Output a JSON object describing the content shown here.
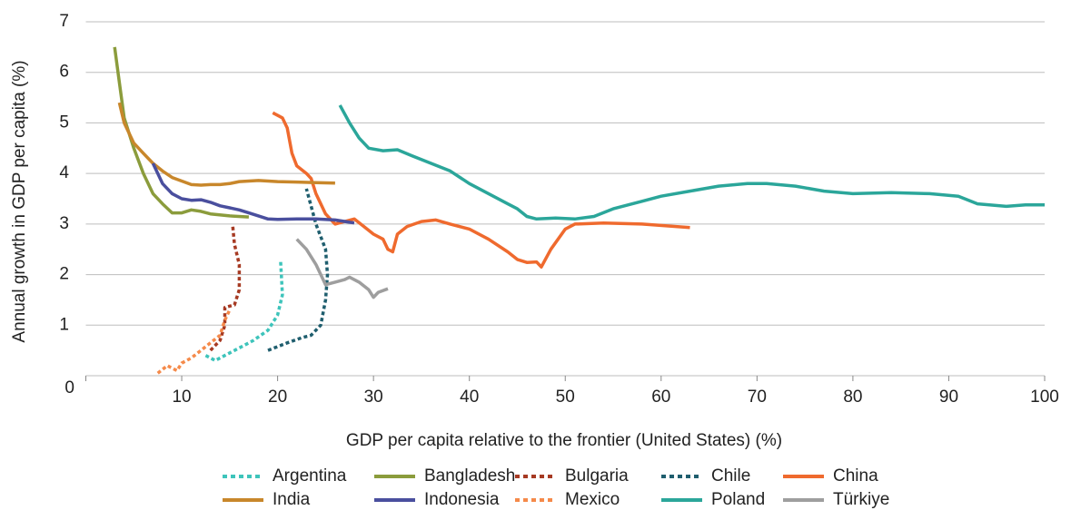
{
  "chart_data": {
    "type": "line",
    "xlabel": "GDP per capita relative to the frontier (United States) (%)",
    "ylabel": "Annual growth in GDP per capita (%)",
    "xlim": [
      0,
      100
    ],
    "ylim": [
      0,
      7
    ],
    "xticks": [
      10,
      20,
      30,
      40,
      50,
      60,
      70,
      80,
      90,
      100
    ],
    "yticks": [
      0,
      1,
      2,
      3,
      4,
      5,
      6,
      7
    ],
    "grid": true,
    "legend": "bottom",
    "series": [
      {
        "name": "Argentina",
        "color": "#3ec4bb",
        "style": "dotted",
        "x": [
          12.5,
          13.5,
          14.5,
          16,
          17.5,
          19,
          20,
          20.5,
          20.3
        ],
        "values": [
          0.4,
          0.3,
          0.4,
          0.55,
          0.7,
          0.9,
          1.2,
          1.6,
          2.3
        ]
      },
      {
        "name": "Bangladesh",
        "color": "#8b9c3c",
        "style": "solid",
        "x": [
          3.0,
          3.5,
          4,
          5,
          6,
          7,
          8,
          9,
          10,
          11,
          12,
          13,
          15,
          17
        ],
        "values": [
          6.5,
          5.8,
          5.1,
          4.5,
          4.0,
          3.6,
          3.4,
          3.22,
          3.22,
          3.28,
          3.25,
          3.2,
          3.16,
          3.14
        ]
      },
      {
        "name": "Bulgaria",
        "color": "#a63a23",
        "style": "dotted",
        "x": [
          13,
          14,
          14.5,
          14.5,
          15.5,
          16,
          16,
          15.5,
          15.3
        ],
        "values": [
          0.5,
          0.7,
          1.0,
          1.35,
          1.4,
          1.7,
          2.2,
          2.6,
          3.0
        ]
      },
      {
        "name": "Chile",
        "color": "#1f5e6e",
        "style": "dotted",
        "x": [
          19,
          21,
          22.5,
          23.5,
          24.5,
          25,
          25.2,
          25,
          24,
          23
        ],
        "values": [
          0.5,
          0.65,
          0.75,
          0.8,
          1.0,
          1.5,
          2.0,
          2.5,
          3.0,
          3.7
        ]
      },
      {
        "name": "China",
        "color": "#ef6a2e",
        "style": "solid",
        "x": [
          19.5,
          20.5,
          21,
          21.5,
          22,
          23,
          23.5,
          24,
          25,
          26,
          27,
          28,
          29,
          30,
          31,
          31.5,
          32,
          32.5,
          33.5,
          35,
          36.5,
          38,
          40,
          42,
          44,
          45,
          46,
          47,
          47.5,
          48.5,
          50,
          51,
          54,
          58,
          63
        ],
        "values": [
          5.2,
          5.1,
          4.9,
          4.4,
          4.15,
          4.0,
          3.9,
          3.6,
          3.2,
          3.0,
          3.05,
          3.1,
          2.95,
          2.8,
          2.7,
          2.5,
          2.45,
          2.8,
          2.95,
          3.05,
          3.08,
          3.0,
          2.9,
          2.7,
          2.45,
          2.3,
          2.24,
          2.25,
          2.15,
          2.5,
          2.9,
          3.0,
          3.02,
          3.0,
          2.93
        ]
      },
      {
        "name": "India",
        "color": "#c8872b",
        "style": "solid",
        "x": [
          3.5,
          4,
          5,
          6,
          7,
          8,
          9,
          10,
          11,
          12,
          13,
          14,
          15,
          16,
          18,
          20,
          22,
          24,
          26
        ],
        "values": [
          5.4,
          5.0,
          4.6,
          4.4,
          4.2,
          4.05,
          3.92,
          3.85,
          3.78,
          3.77,
          3.78,
          3.78,
          3.8,
          3.84,
          3.86,
          3.84,
          3.83,
          3.82,
          3.81
        ]
      },
      {
        "name": "Indonesia",
        "color": "#4a4f9e",
        "style": "solid",
        "x": [
          7,
          8,
          9,
          10,
          11,
          12,
          13,
          14,
          15,
          16,
          17,
          18,
          19,
          20,
          22,
          24,
          26,
          28
        ],
        "values": [
          4.2,
          3.8,
          3.6,
          3.5,
          3.47,
          3.48,
          3.43,
          3.36,
          3.32,
          3.28,
          3.22,
          3.16,
          3.1,
          3.09,
          3.1,
          3.1,
          3.08,
          3.02
        ]
      },
      {
        "name": "Mexico",
        "color": "#f58a4a",
        "style": "dotted",
        "x": [
          7.5,
          8.5,
          9.5,
          10,
          11,
          12,
          13,
          14,
          14.5,
          15
        ],
        "values": [
          0.05,
          0.2,
          0.1,
          0.25,
          0.35,
          0.5,
          0.65,
          0.8,
          1.1,
          1.3
        ]
      },
      {
        "name": "Poland",
        "color": "#2ba69a",
        "style": "solid",
        "x": [
          26.5,
          27.5,
          28.5,
          29.5,
          31,
          32.5,
          34,
          36,
          38,
          40,
          42,
          44,
          45,
          46,
          47,
          49,
          51,
          53,
          55,
          58,
          60,
          63,
          66,
          69,
          71,
          74,
          77,
          80,
          84,
          88,
          91,
          93,
          96,
          98,
          100
        ],
        "values": [
          5.35,
          5.0,
          4.7,
          4.5,
          4.45,
          4.47,
          4.35,
          4.2,
          4.05,
          3.8,
          3.6,
          3.4,
          3.3,
          3.15,
          3.1,
          3.12,
          3.1,
          3.15,
          3.3,
          3.45,
          3.55,
          3.65,
          3.75,
          3.8,
          3.8,
          3.75,
          3.65,
          3.6,
          3.62,
          3.6,
          3.55,
          3.4,
          3.35,
          3.38,
          3.38
        ]
      },
      {
        "name": "Türkiye",
        "color": "#9e9e9e",
        "style": "solid",
        "x": [
          22,
          23,
          24,
          25,
          26,
          27,
          27.5,
          28.5,
          29.5,
          30,
          30.5,
          31.5
        ],
        "values": [
          2.7,
          2.5,
          2.2,
          1.8,
          1.85,
          1.9,
          1.95,
          1.85,
          1.7,
          1.55,
          1.65,
          1.72
        ]
      }
    ]
  }
}
